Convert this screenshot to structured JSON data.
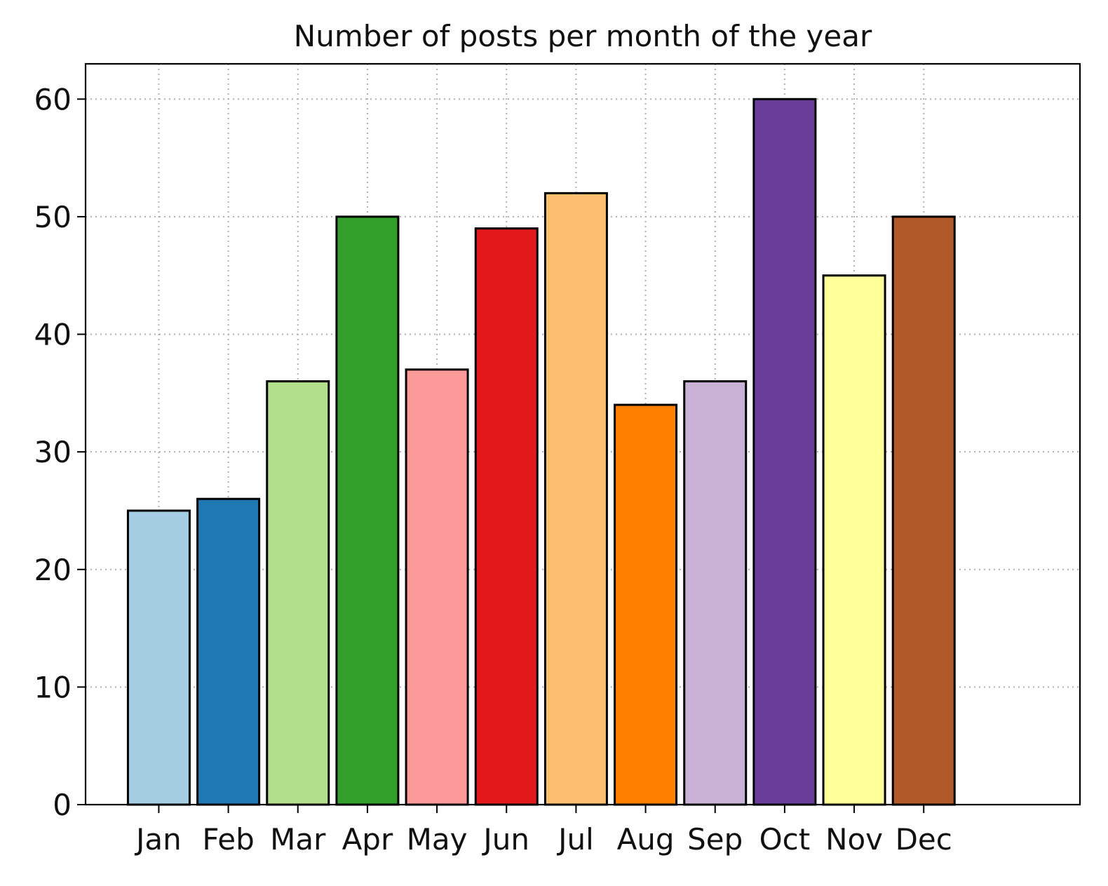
{
  "chart_data": {
    "type": "bar",
    "title": "Number of posts per month of the year",
    "xlabel": "",
    "ylabel": "",
    "categories": [
      "Jan",
      "Feb",
      "Mar",
      "Apr",
      "May",
      "Jun",
      "Jul",
      "Aug",
      "Sep",
      "Oct",
      "Nov",
      "Dec"
    ],
    "values": [
      25,
      26,
      36,
      50,
      37,
      49,
      52,
      34,
      36,
      60,
      45,
      50
    ],
    "colors": [
      "#a6cee3",
      "#1f78b4",
      "#b2df8a",
      "#33a02c",
      "#fb9a99",
      "#e31a1c",
      "#fdbf6f",
      "#ff7f00",
      "#cab2d6",
      "#6a3d9a",
      "#ffff99",
      "#b15928"
    ],
    "edge_color": "#000000",
    "ylim": [
      0,
      63
    ],
    "yticks": [
      0,
      10,
      20,
      30,
      40,
      50,
      60
    ],
    "grid": true,
    "legend": "none"
  }
}
